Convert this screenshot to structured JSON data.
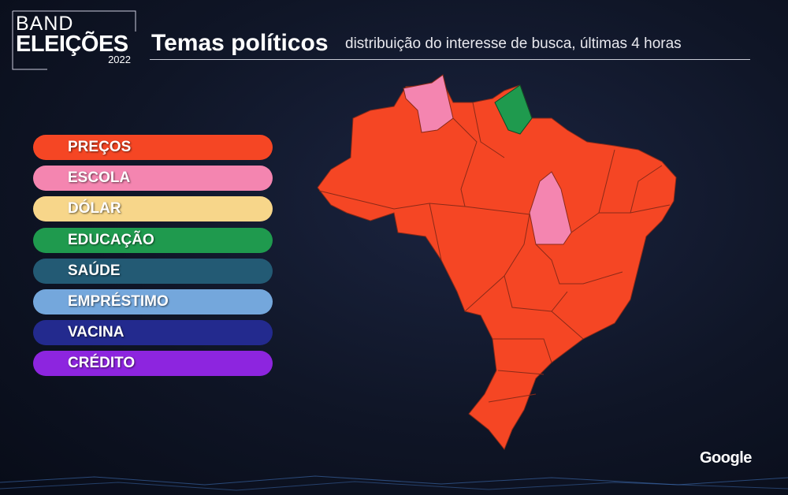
{
  "header": {
    "logo": {
      "line1": "BAND",
      "line2": "ELEIÇÕES",
      "year": "2022"
    },
    "title": "Temas políticos",
    "subtitle": "distribuição do interesse de busca, últimas 4 horas"
  },
  "legend": [
    {
      "label": "PREÇOS",
      "color": "#f54624"
    },
    {
      "label": "ESCOLA",
      "color": "#f485b0"
    },
    {
      "label": "DÓLAR",
      "color": "#f7d68a"
    },
    {
      "label": "EDUCAÇÃO",
      "color": "#1f9a4e"
    },
    {
      "label": "SAÚDE",
      "color": "#235a74"
    },
    {
      "label": "EMPRÉSTIMO",
      "color": "#74a7dc"
    },
    {
      "label": "VACINA",
      "color": "#232a8e"
    },
    {
      "label": "CRÉDITO",
      "color": "#8d25df"
    }
  ],
  "footer": {
    "brand": "Google"
  }
}
